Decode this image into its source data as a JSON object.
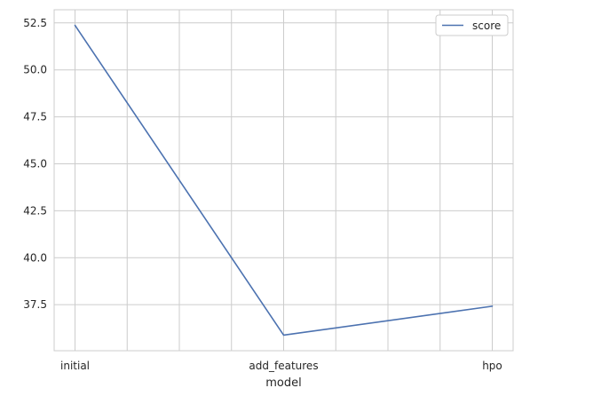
{
  "chart_data": {
    "type": "line",
    "categories": [
      "initial",
      "add_features",
      "hpo"
    ],
    "series": [
      {
        "name": "score",
        "values": [
          52.37,
          35.88,
          37.42
        ],
        "color": "#4c72b0"
      }
    ],
    "xlabel": "model",
    "ylabel": "",
    "ylim": [
      35.05,
      53.2
    ],
    "yticks": [
      37.5,
      40.0,
      42.5,
      45.0,
      47.5,
      50.0,
      52.5
    ],
    "ytick_labels": [
      "37.5",
      "40.0",
      "42.5",
      "45.0",
      "47.5",
      "50.0",
      "52.5"
    ],
    "x_gridlines": [
      0,
      0.25,
      0.5,
      0.75,
      1,
      1.25,
      1.5,
      1.75,
      2
    ],
    "grid": true,
    "legend": "top-right",
    "colors": {
      "grid": "#cccccc",
      "spine": "#cccccc",
      "text": "#262626"
    }
  }
}
